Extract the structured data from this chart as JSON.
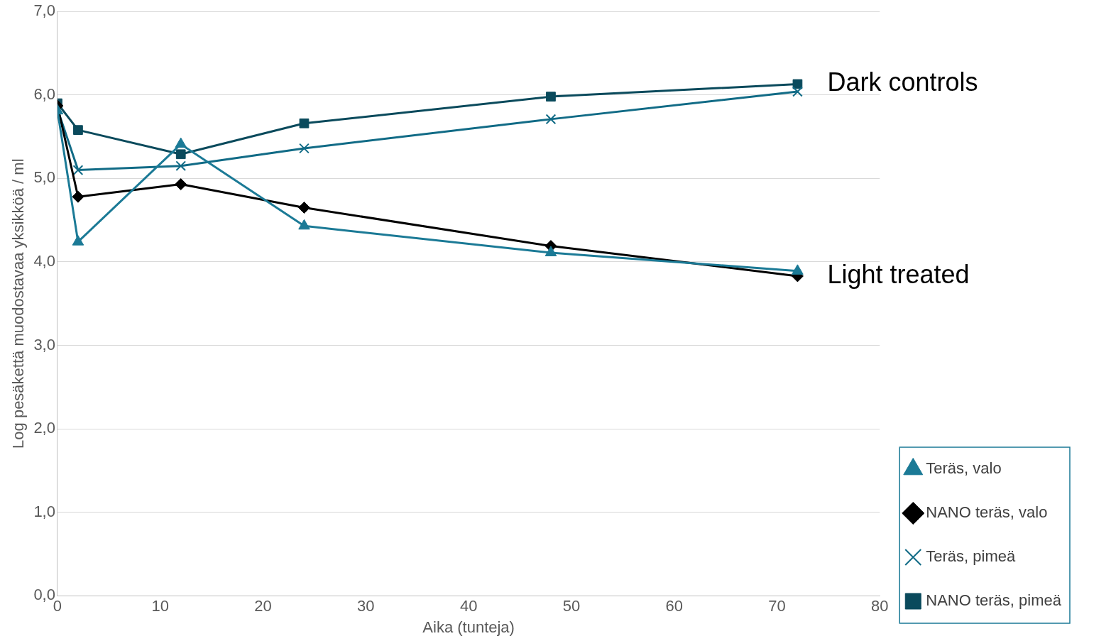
{
  "chart_data": {
    "type": "line",
    "xlabel": "Aika (tunteja)",
    "ylabel": "Log pesäkettä muodostavaa yksikköä / ml",
    "x": [
      0,
      2,
      12,
      24,
      48,
      72
    ],
    "series": [
      {
        "name": "Teräs, valo",
        "color": "#1b7a96",
        "marker": "triangle",
        "values": [
          5.81,
          4.24,
          5.41,
          4.43,
          4.11,
          3.89
        ]
      },
      {
        "name": "NANO teräs, valo",
        "color": "#000000",
        "marker": "diamond",
        "values": [
          5.87,
          4.78,
          4.93,
          4.65,
          4.19,
          3.83
        ]
      },
      {
        "name": "Teräs, pimeä",
        "color": "#116b86",
        "marker": "cross",
        "values": [
          5.83,
          5.1,
          5.15,
          5.36,
          5.71,
          6.04
        ]
      },
      {
        "name": "NANO teräs, pimeä",
        "color": "#0a4a5c",
        "marker": "square",
        "values": [
          5.9,
          5.58,
          5.29,
          5.66,
          5.98,
          6.13
        ]
      }
    ],
    "xlim": [
      0,
      80
    ],
    "xticks": [
      0,
      10,
      20,
      30,
      40,
      50,
      60,
      70,
      80
    ],
    "ylim": [
      0,
      7
    ],
    "yticks": [
      {
        "value": 0,
        "label": "0,0"
      },
      {
        "value": 1,
        "label": "1,0"
      },
      {
        "value": 2,
        "label": "2,0"
      },
      {
        "value": 3,
        "label": "3,0"
      },
      {
        "value": 4,
        "label": "4,0"
      },
      {
        "value": 5,
        "label": "5,0"
      },
      {
        "value": 6,
        "label": "6,0"
      },
      {
        "value": 7,
        "label": "7,0"
      }
    ],
    "grid": "y",
    "legend": "right",
    "line_style": "solid",
    "annotations": [
      {
        "text": "Dark controls",
        "x": 72,
        "y": 6.13
      },
      {
        "text": "Light treated",
        "x": 72,
        "y": 3.83
      }
    ]
  }
}
